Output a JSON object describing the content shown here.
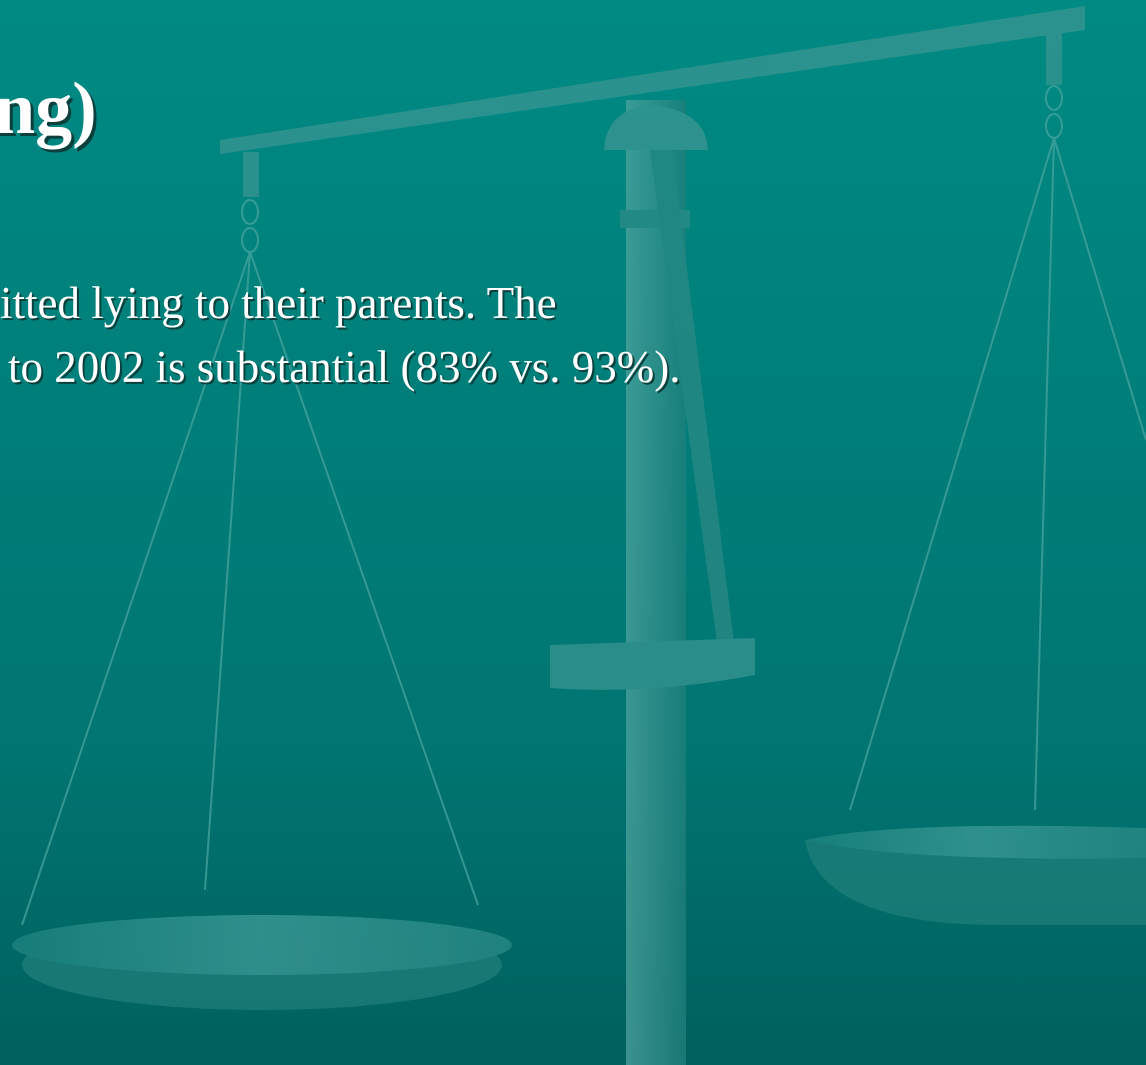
{
  "slide": {
    "title": "ng)",
    "body": [
      "itted lying to their parents. The",
      "to 2002 is substantial (83% vs. 93%)."
    ]
  }
}
